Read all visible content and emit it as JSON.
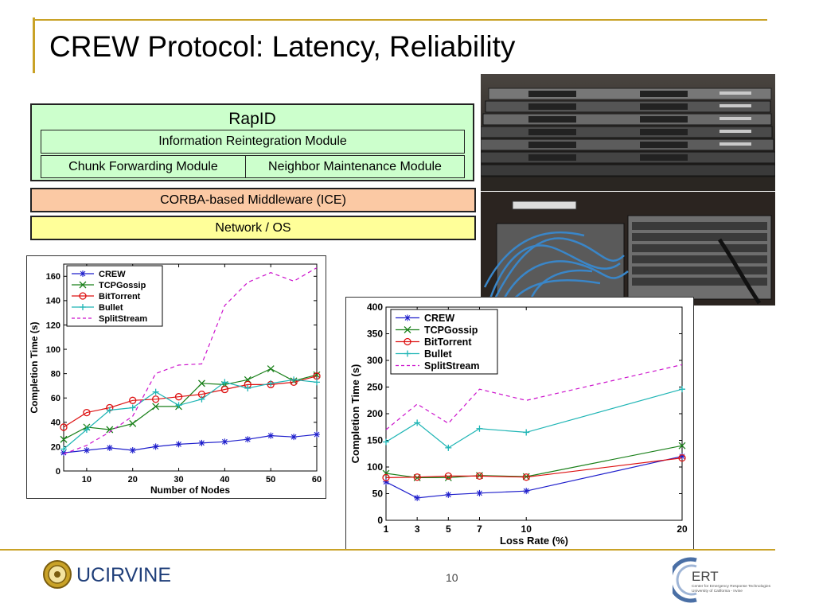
{
  "slide": {
    "title": "CREW Protocol: Latency, Reliability",
    "page_number": "10"
  },
  "stack": {
    "rapid": "RapID",
    "info_module": "Information Reintegration Module",
    "chunk_module": "Chunk Forwarding Module",
    "neighbor_module": "Neighbor Maintenance Module",
    "middleware": "CORBA-based Middleware (ICE)",
    "network": "Network / OS"
  },
  "logos": {
    "uci": "UCIRVINE",
    "ert_abbr": "ERT",
    "ert_line1": "Center for Emergency Response Technologies",
    "ert_line2": "University of California - Irvine"
  },
  "colors": {
    "accent_rule": "#c9a227",
    "rapid_bg": "#ccffcc",
    "middleware_bg": "#fbc9a4",
    "network_bg": "#ffff99"
  },
  "chart_data": [
    {
      "type": "line",
      "title": "",
      "xlabel": "Number of Nodes",
      "ylabel": "Completion Time (s)",
      "xlim": [
        5,
        60
      ],
      "ylim": [
        0,
        170
      ],
      "xticks": [
        10,
        20,
        30,
        40,
        50,
        60
      ],
      "yticks": [
        0,
        20,
        40,
        60,
        80,
        100,
        120,
        140,
        160
      ],
      "legend_position": "top-left",
      "x": [
        5,
        10,
        15,
        20,
        25,
        30,
        35,
        40,
        45,
        50,
        55,
        60
      ],
      "series": [
        {
          "name": "CREW",
          "color": "#1f1fcc",
          "marker": "star",
          "dash": false,
          "values": [
            15,
            17,
            19,
            17,
            20,
            22,
            23,
            24,
            26,
            29,
            28,
            30
          ]
        },
        {
          "name": "TCPGossip",
          "color": "#1a801a",
          "marker": "x",
          "dash": false,
          "values": [
            26,
            36,
            34,
            39,
            53,
            53,
            72,
            71,
            75,
            84,
            74,
            79
          ]
        },
        {
          "name": "BitTorrent",
          "color": "#dd1111",
          "marker": "circle",
          "dash": false,
          "values": [
            36,
            48,
            52,
            58,
            59,
            61,
            63,
            67,
            71,
            71,
            73,
            78
          ]
        },
        {
          "name": "Bullet",
          "color": "#1fb5b5",
          "marker": "plus",
          "dash": false,
          "values": [
            18,
            34,
            50,
            52,
            65,
            54,
            59,
            73,
            68,
            72,
            75,
            73
          ]
        },
        {
          "name": "SplitStream",
          "color": "#cc11cc",
          "marker": "none",
          "dash": true,
          "values": [
            14,
            21,
            32,
            45,
            80,
            87,
            88,
            136,
            155,
            163,
            156,
            167
          ]
        }
      ]
    },
    {
      "type": "line",
      "title": "",
      "xlabel": "Loss Rate (%)",
      "ylabel": "Completion Time (s)",
      "xlim": [
        1,
        20
      ],
      "ylim": [
        0,
        400
      ],
      "xticks": [
        1,
        3,
        5,
        7,
        10,
        20
      ],
      "yticks": [
        0,
        50,
        100,
        150,
        200,
        250,
        300,
        350,
        400
      ],
      "legend_position": "top-left",
      "x": [
        1,
        3,
        5,
        7,
        10,
        20
      ],
      "series": [
        {
          "name": "CREW",
          "color": "#1f1fcc",
          "marker": "star",
          "dash": false,
          "values": [
            72,
            42,
            48,
            51,
            55,
            120
          ]
        },
        {
          "name": "TCPGossip",
          "color": "#1a801a",
          "marker": "x",
          "dash": false,
          "values": [
            88,
            80,
            80,
            84,
            82,
            140
          ]
        },
        {
          "name": "BitTorrent",
          "color": "#dd1111",
          "marker": "circle",
          "dash": false,
          "values": [
            80,
            81,
            83,
            83,
            81,
            117
          ]
        },
        {
          "name": "Bullet",
          "color": "#1fb5b5",
          "marker": "plus",
          "dash": false,
          "values": [
            147,
            183,
            136,
            172,
            165,
            246
          ]
        },
        {
          "name": "SplitStream",
          "color": "#cc11cc",
          "marker": "none",
          "dash": true,
          "values": [
            170,
            218,
            182,
            246,
            225,
            292
          ]
        }
      ]
    }
  ]
}
